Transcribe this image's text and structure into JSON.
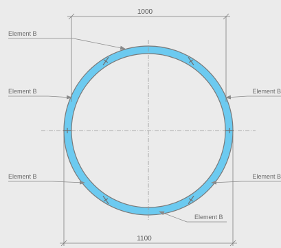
{
  "dimensions": {
    "top": "1000",
    "bottom": "1100"
  },
  "labels": {
    "upper_left": "Element B",
    "mid_left": "Element B",
    "mid_right": "Element B",
    "lower_left": "Element B",
    "lower_right": "Element B",
    "bottom_center": "Element B"
  },
  "colors": {
    "ring_fill": "#6ccaf0",
    "ring_edge": "#7a7a7a",
    "background": "#ebebeb"
  }
}
